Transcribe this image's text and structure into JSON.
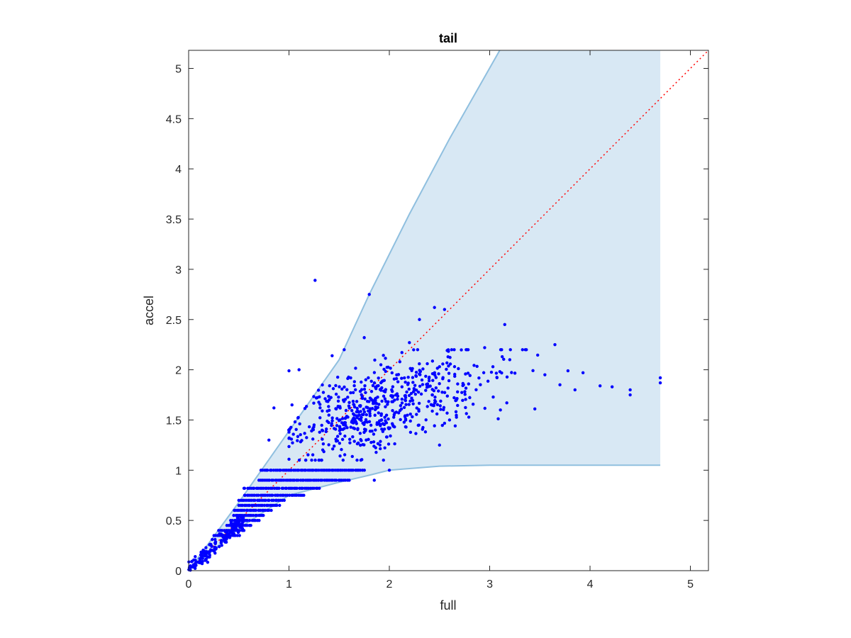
{
  "chart_data": {
    "type": "scatter",
    "title": "tail",
    "xlabel": "full",
    "ylabel": "accel",
    "xlim": [
      0,
      5.18
    ],
    "ylim": [
      0,
      5.18
    ],
    "x_ticks": [
      "0",
      "1",
      "2",
      "3",
      "4",
      "5"
    ],
    "y_ticks": [
      "0",
      "0.5",
      "1",
      "1.5",
      "2",
      "2.5",
      "3",
      "3.5",
      "4",
      "4.5",
      "5"
    ],
    "x_tick_values": [
      0,
      1,
      2,
      3,
      4,
      5
    ],
    "y_tick_values": [
      0,
      0.5,
      1,
      1.5,
      2,
      2.5,
      3,
      3.5,
      4,
      4.5,
      5
    ],
    "grid": false,
    "colors": {
      "band_fill": "#d8e8f4",
      "band_edge": "#8fbfdf",
      "points": "#0000ff",
      "diagonal": "#ff0000",
      "axis": "#262626"
    },
    "band": {
      "upper": [
        [
          0,
          0
        ],
        [
          0.5,
          0.68
        ],
        [
          1,
          1.39
        ],
        [
          1.5,
          2.1
        ],
        [
          1.8,
          2.75
        ],
        [
          2.2,
          3.55
        ],
        [
          2.6,
          4.3
        ],
        [
          3.1,
          5.18
        ],
        [
          4.7,
          5.18
        ]
      ],
      "lower": [
        [
          0,
          0
        ],
        [
          0.5,
          0.42
        ],
        [
          1,
          0.75
        ],
        [
          1.5,
          0.88
        ],
        [
          1.8,
          0.95
        ],
        [
          2,
          1.0
        ],
        [
          2.5,
          1.04
        ],
        [
          3,
          1.05
        ],
        [
          4.7,
          1.05
        ]
      ]
    },
    "diagonal": [
      [
        0,
        0
      ],
      [
        5.18,
        5.18
      ]
    ],
    "outliers": [
      [
        1.26,
        2.89
      ],
      [
        1.8,
        2.75
      ],
      [
        2.45,
        2.62
      ],
      [
        2.55,
        2.6
      ],
      [
        2.3,
        2.5
      ],
      [
        3.15,
        2.45
      ],
      [
        3.65,
        2.25
      ],
      [
        4.7,
        1.92
      ],
      [
        4.7,
        1.87
      ],
      [
        4.4,
        1.8
      ],
      [
        4.4,
        1.75
      ],
      [
        4.1,
        1.84
      ],
      [
        4.22,
        1.83
      ],
      [
        3.85,
        1.8
      ],
      [
        3.93,
        1.97
      ],
      [
        3.78,
        1.99
      ],
      [
        3.45,
        1.61
      ],
      [
        2.95,
        2.22
      ],
      [
        3.2,
        2.1
      ],
      [
        2.2,
        2.27
      ],
      [
        2.5,
        1.25
      ],
      [
        1.75,
        2.32
      ],
      [
        1.55,
        2.2
      ],
      [
        1.0,
        1.99
      ],
      [
        1.1,
        2.0
      ],
      [
        1.43,
        2.14
      ],
      [
        0.85,
        1.62
      ],
      [
        1.03,
        1.65
      ],
      [
        0.8,
        1.3
      ],
      [
        2.6,
        1.5
      ],
      [
        1.85,
        0.9
      ],
      [
        2.0,
        1.0
      ],
      [
        3.55,
        1.95
      ],
      [
        3.7,
        1.85
      ]
    ],
    "cluster": {
      "count": 620,
      "x_range": [
        1.0,
        3.8
      ],
      "y_range": [
        1.1,
        2.2
      ],
      "description_values": "dense cloud centered near (1.8, 1.5)"
    },
    "stripes": [
      {
        "y": 1.0,
        "x_from": 0.72,
        "x_to": 1.75
      },
      {
        "y": 0.9,
        "x_from": 0.7,
        "x_to": 1.6
      },
      {
        "y": 0.82,
        "x_from": 0.55,
        "x_to": 1.3
      },
      {
        "y": 0.75,
        "x_from": 0.55,
        "x_to": 1.15
      },
      {
        "y": 0.7,
        "x_from": 0.5,
        "x_to": 0.95
      },
      {
        "y": 0.65,
        "x_from": 0.5,
        "x_to": 0.9
      },
      {
        "y": 0.6,
        "x_from": 0.45,
        "x_to": 0.82
      },
      {
        "y": 0.55,
        "x_from": 0.45,
        "x_to": 0.75
      },
      {
        "y": 0.5,
        "x_from": 0.42,
        "x_to": 0.7
      },
      {
        "y": 0.45,
        "x_from": 0.38,
        "x_to": 0.62
      },
      {
        "y": 0.4,
        "x_from": 0.3,
        "x_to": 0.55
      },
      {
        "y": 0.35,
        "x_from": 0.25,
        "x_to": 0.5
      }
    ],
    "low_cloud": {
      "count": 160,
      "x_range": [
        0.0,
        0.55
      ],
      "slope": 0.95
    }
  }
}
